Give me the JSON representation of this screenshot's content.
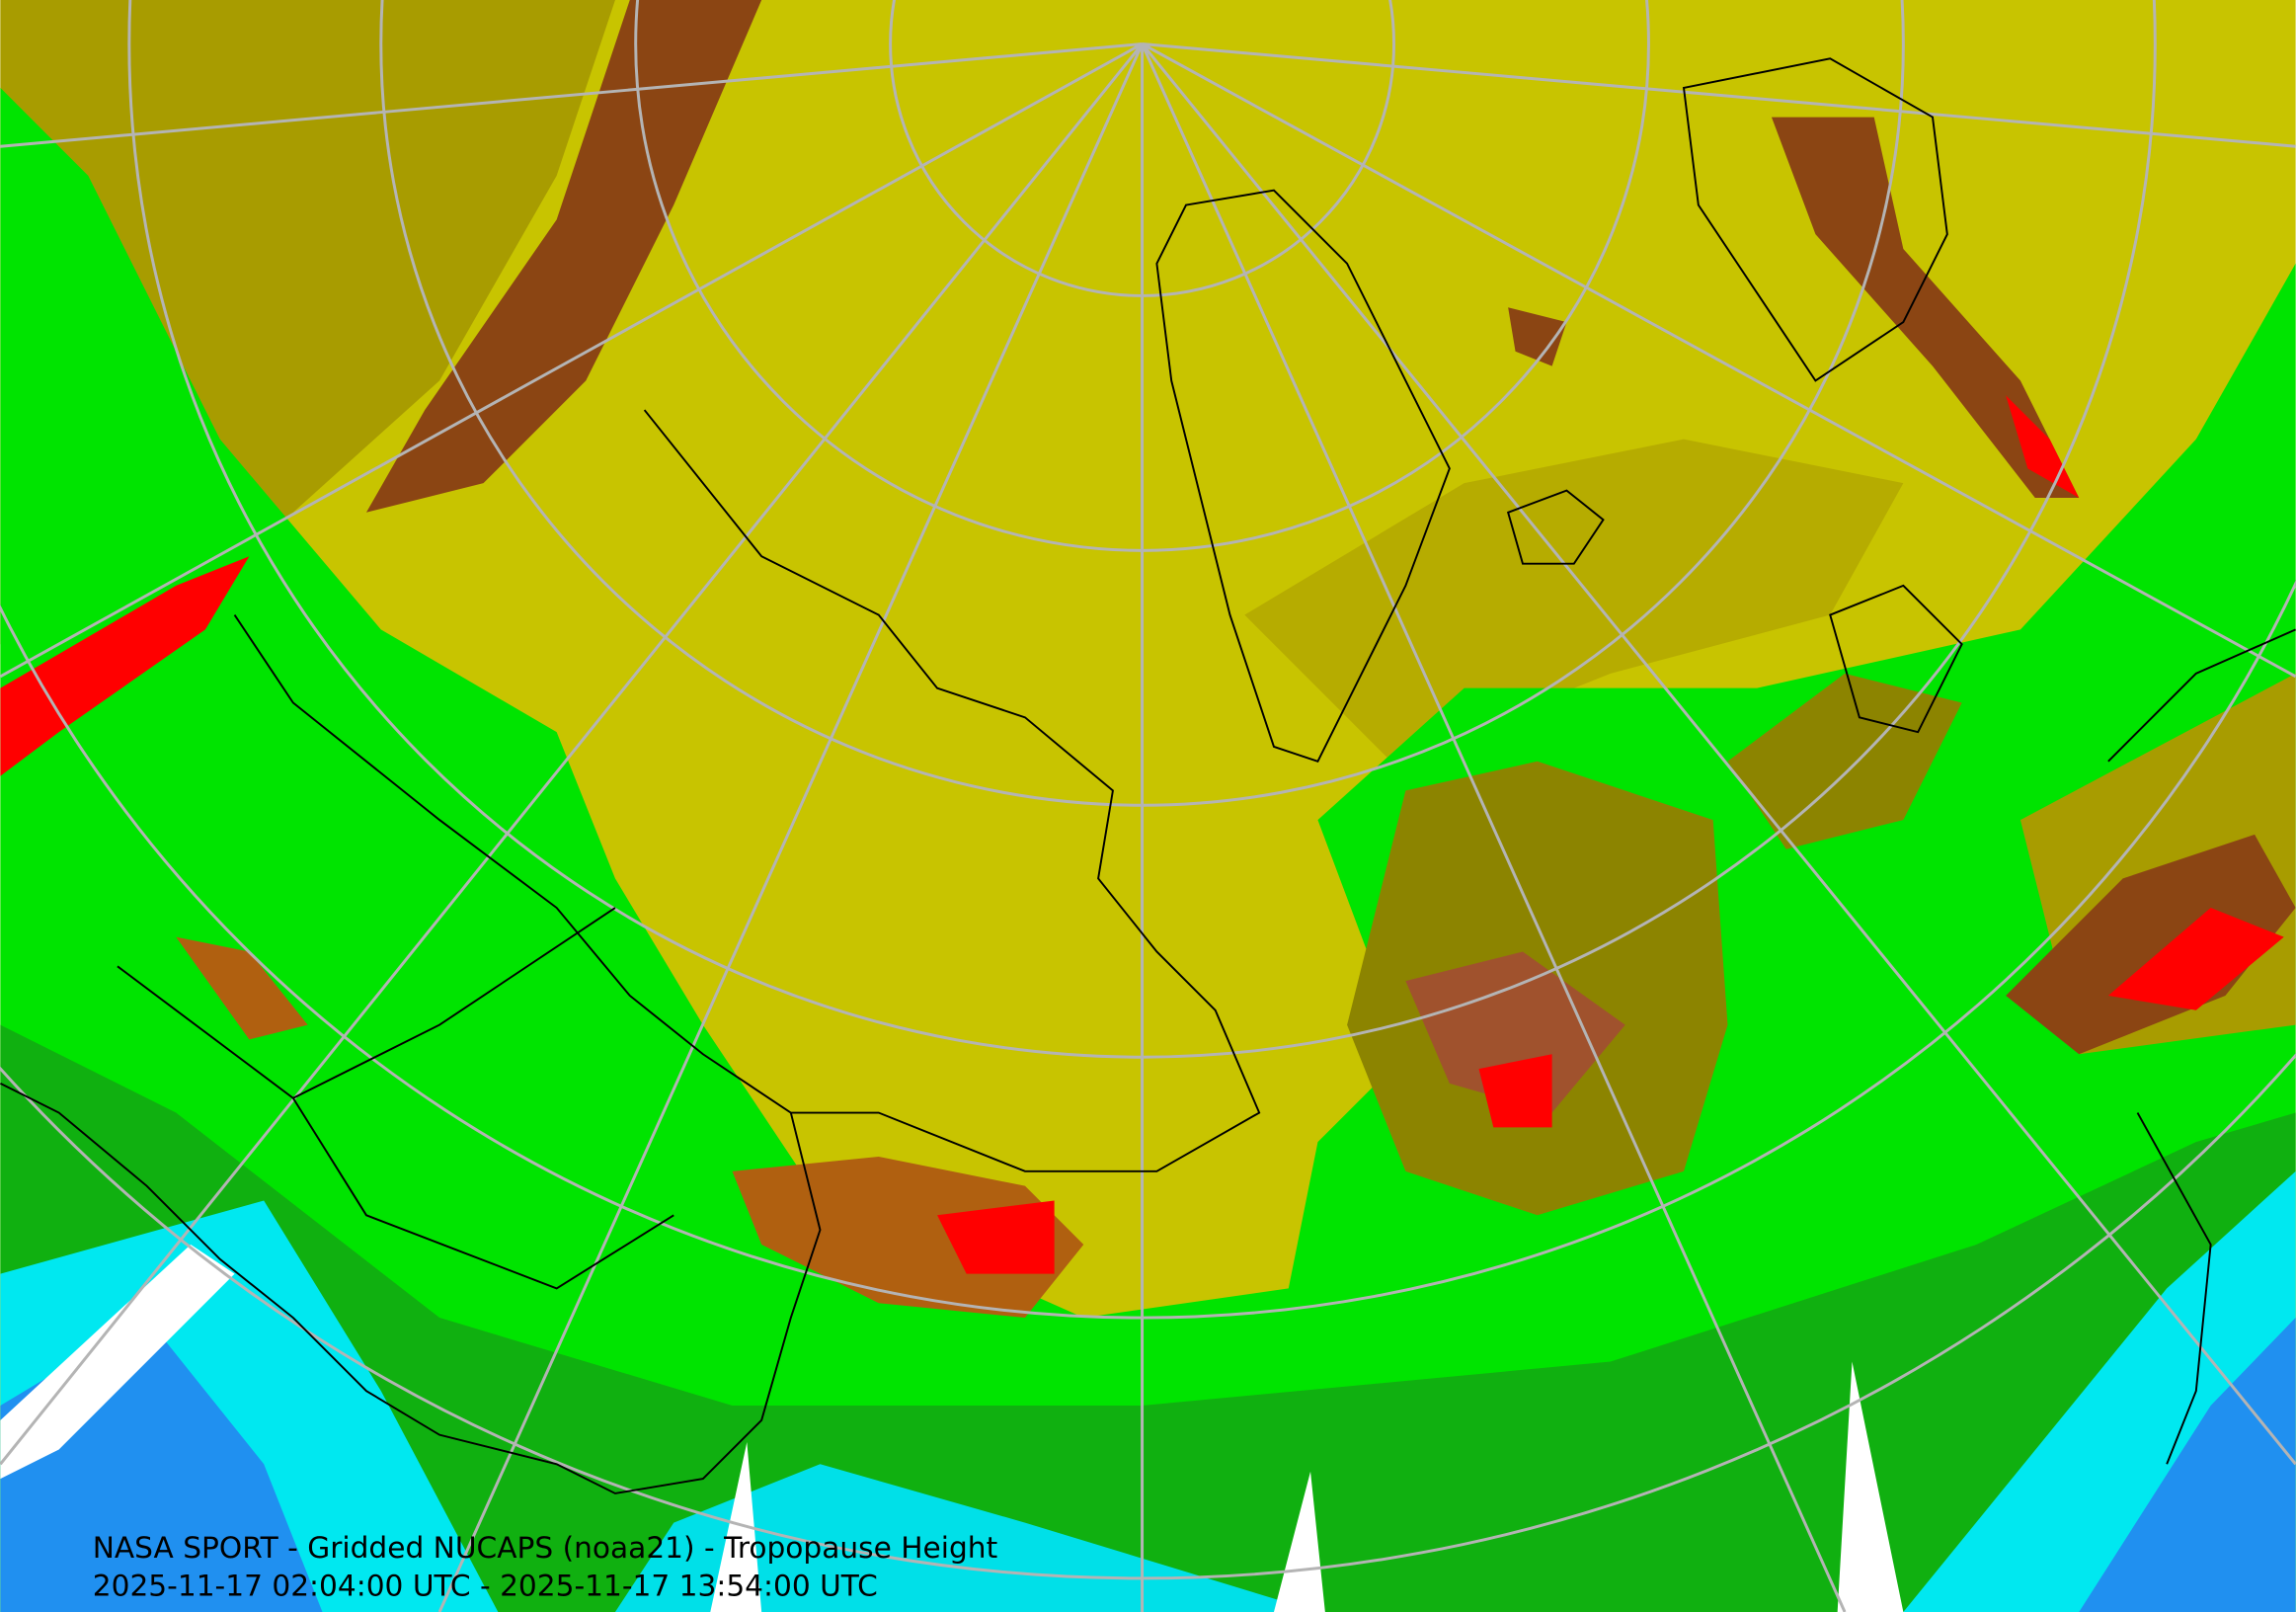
{
  "caption": {
    "title": "NASA SPORT - Gridded NUCAPS (noaa21) - Tropopause Height",
    "time_range": "2025-11-17 02:04:00 UTC - 2025-11-17 13:54:00 UTC"
  }
}
